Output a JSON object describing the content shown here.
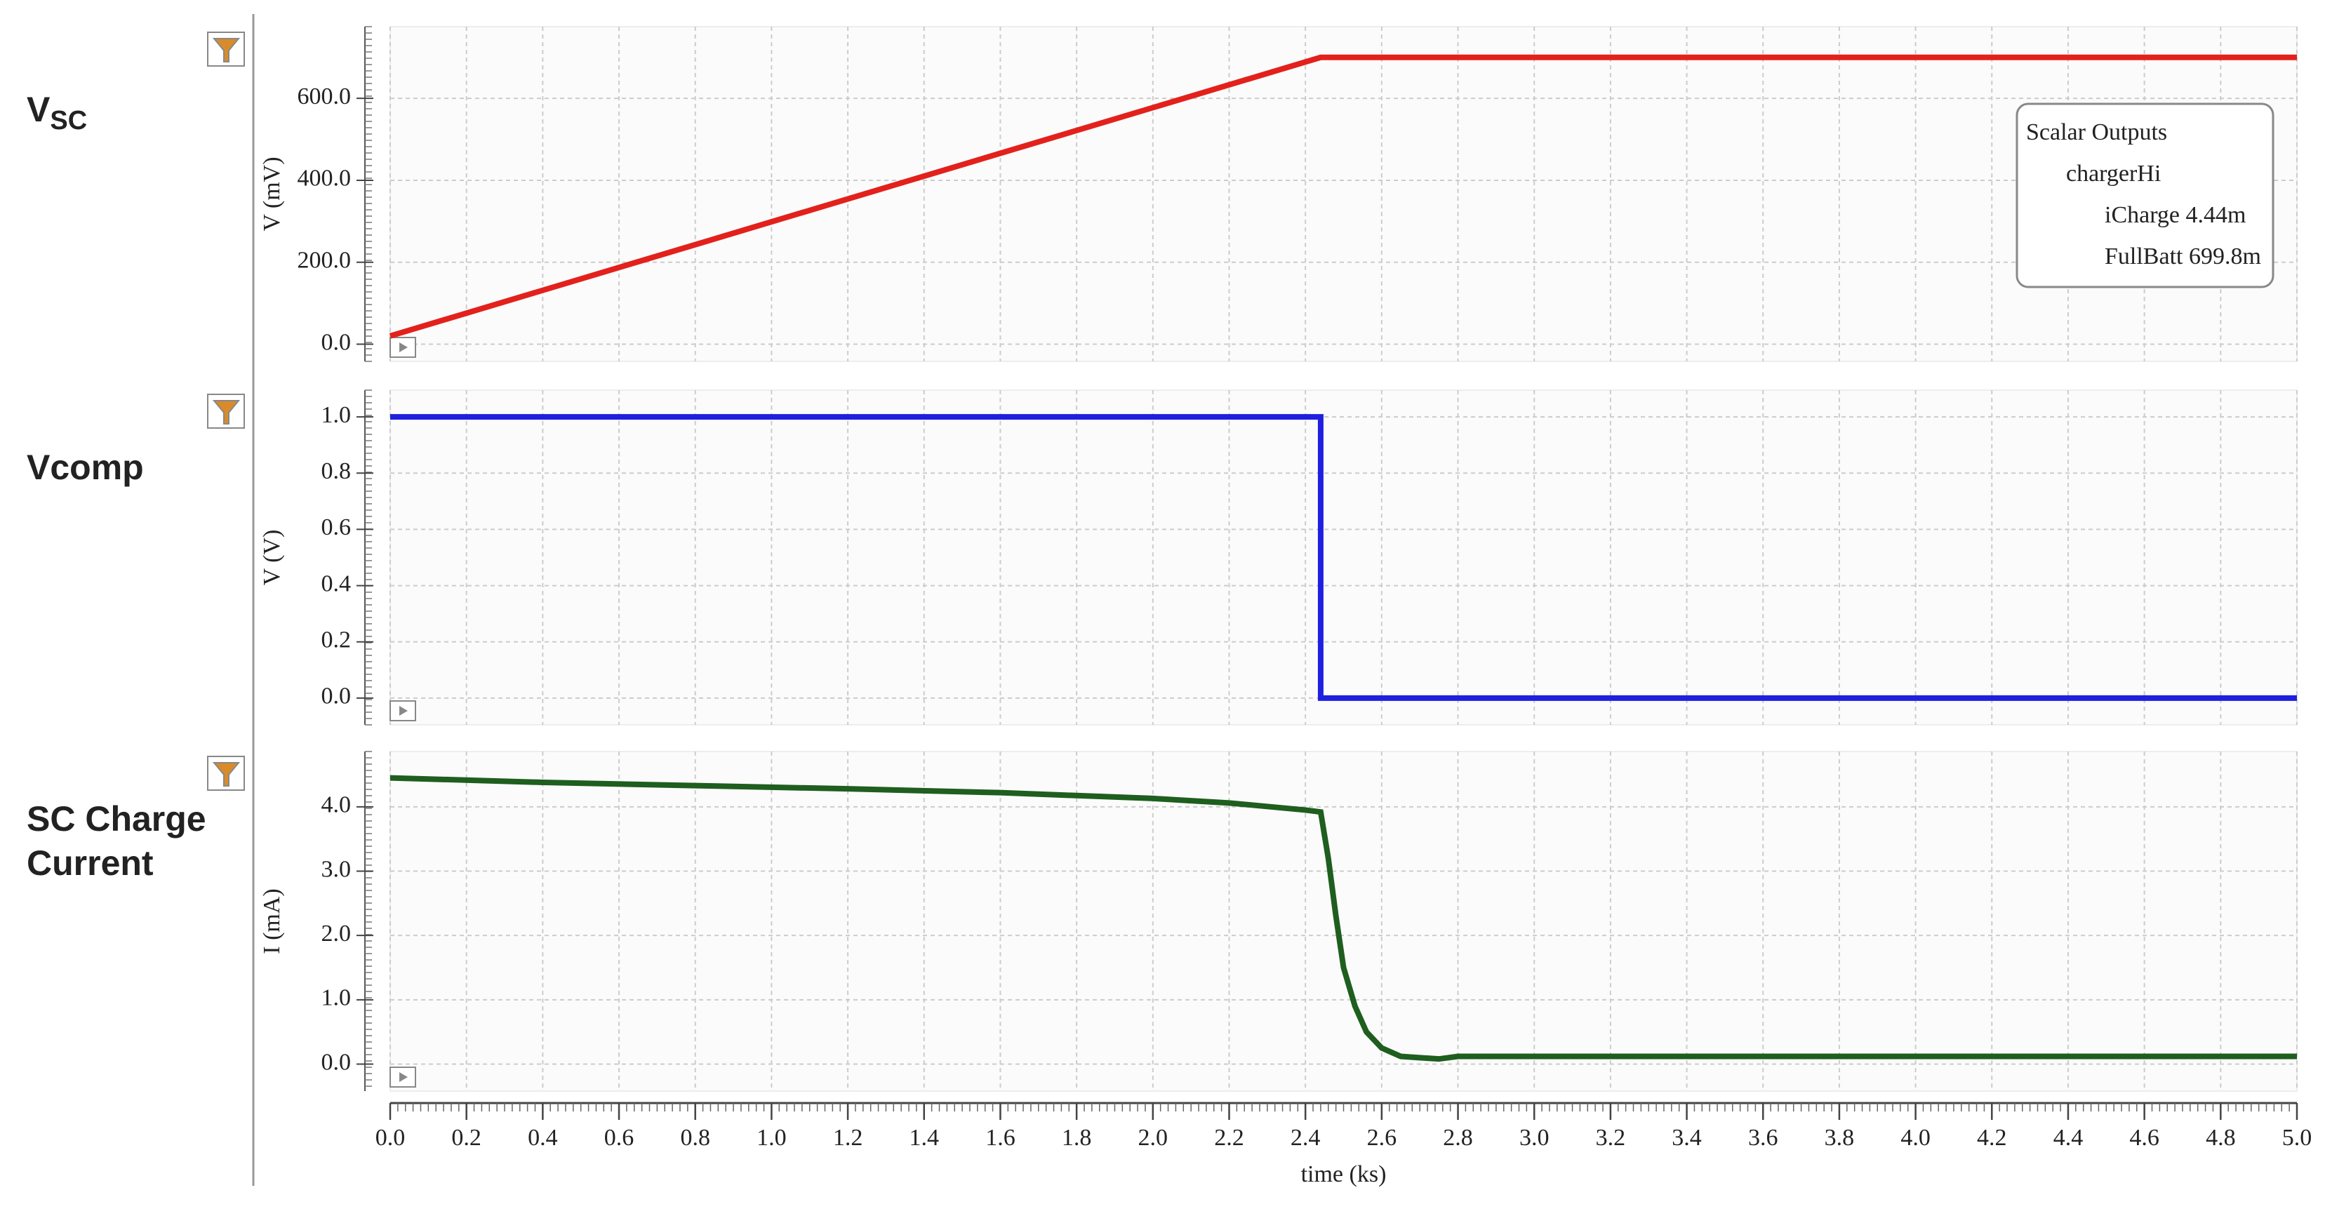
{
  "chart_data": [
    {
      "type": "line",
      "title": "V",
      "title_sub": "SC",
      "title_color": "#e3211c",
      "ylabel": "V (mV)",
      "color": "#e3211c",
      "x": [
        0,
        2.44,
        5.0
      ],
      "values": [
        20,
        700,
        700
      ],
      "xlim": [
        0,
        5.0
      ],
      "ylim": [
        -42,
        775
      ],
      "yticks": [
        {
          "value": 0,
          "label": "0.0"
        },
        {
          "value": 200,
          "label": "200.0"
        },
        {
          "value": 400,
          "label": "400.0"
        },
        {
          "value": 600,
          "label": "600.0"
        }
      ],
      "grid": true,
      "annotations": [
        "Scalar Outputs",
        "chargerHi",
        "iCharge 4.44m",
        "FullBatt 699.8m"
      ]
    },
    {
      "type": "line",
      "title": "Vcomp",
      "title_color": "#1f6fbf",
      "ylabel": "V (V)",
      "color": "#1f1fe0",
      "x": [
        0,
        2.44,
        2.44,
        5.0
      ],
      "values": [
        1,
        1,
        0,
        0
      ],
      "xlim": [
        0,
        5.0
      ],
      "ylim": [
        -0.095,
        1.095
      ],
      "yticks": [
        {
          "value": 0,
          "label": "0.0"
        },
        0.2,
        0.4,
        0.6,
        0.8,
        {
          "value": 1,
          "label": "1.0"
        }
      ],
      "grid": true
    },
    {
      "type": "line",
      "title": "SC Charge",
      "title_line2": "Current",
      "title_color": "#3a7d24",
      "ylabel": "I (mA)",
      "color": "#1e5e1e",
      "x": [
        0,
        0.4,
        0.8,
        1.2,
        1.6,
        2.0,
        2.2,
        2.4,
        2.44,
        2.46,
        2.48,
        2.5,
        2.53,
        2.56,
        2.6,
        2.65,
        2.7,
        2.75,
        2.8,
        5.0
      ],
      "values": [
        4.45,
        4.38,
        4.33,
        4.28,
        4.22,
        4.13,
        4.06,
        3.95,
        3.92,
        3.2,
        2.3,
        1.5,
        0.9,
        0.5,
        0.25,
        0.12,
        0.1,
        0.08,
        0.12,
        0.12
      ],
      "xlim": [
        0,
        5.0
      ],
      "ylim": [
        -0.42,
        4.86
      ],
      "yticks": [
        {
          "value": 0,
          "label": "0.0"
        },
        {
          "value": 1,
          "label": "1.0"
        },
        {
          "value": 2,
          "label": "2.0"
        },
        {
          "value": 3,
          "label": "3.0"
        },
        {
          "value": 4,
          "label": "4.0"
        }
      ],
      "xlabel": "time (ks)",
      "xticks": [
        {
          "value": 0,
          "label": "0.0"
        },
        0.2,
        0.4,
        0.6,
        0.8,
        {
          "value": 1,
          "label": "1.0"
        },
        1.2,
        1.4,
        1.6,
        1.8,
        {
          "value": 2,
          "label": "2.0"
        },
        2.2,
        2.4,
        2.6,
        2.8,
        {
          "value": 3,
          "label": "3.0"
        },
        3.2,
        3.4,
        3.6,
        3.8,
        {
          "value": 4,
          "label": "4.0"
        },
        4.2,
        4.4,
        4.6,
        4.8,
        {
          "value": 5,
          "label": "5.0"
        }
      ],
      "grid": true
    }
  ]
}
